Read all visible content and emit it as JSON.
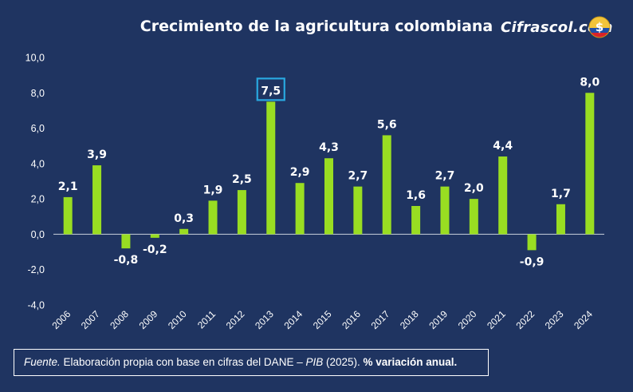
{
  "header": {
    "brand": "Cifrascol.com",
    "brand_logo_icon": "dollar-coin-colombia-flag-icon"
  },
  "source_note": {
    "prefix": "Fuente.",
    "text1": " Elaboración propia con base en cifras del DANE – ",
    "italic": "PIB",
    "text2": " (2025). ",
    "bold": "% variación anual."
  },
  "chart_data": {
    "type": "bar",
    "title": "Crecimiento de la agricultura colombiana",
    "categories": [
      "2006",
      "2007",
      "2008",
      "2009",
      "2010",
      "2011",
      "2012",
      "2013",
      "2014",
      "2015",
      "2016",
      "2017",
      "2018",
      "2019",
      "2020",
      "2021",
      "2022",
      "2023",
      "2024"
    ],
    "values": [
      2.1,
      3.9,
      -0.8,
      -0.2,
      0.3,
      1.9,
      2.5,
      7.5,
      2.9,
      4.3,
      2.7,
      5.6,
      1.6,
      2.7,
      2.0,
      4.4,
      -0.9,
      1.7,
      8.0
    ],
    "value_labels": [
      "2,1",
      "3,9",
      "-0,8",
      "-0,2",
      "0,3",
      "1,9",
      "2,5",
      "7,5",
      "2,9",
      "4,3",
      "2,7",
      "5,6",
      "1,6",
      "2,7",
      "2,0",
      "4,4",
      "-0,9",
      "1,7",
      "8,0"
    ],
    "yticks": [
      "10,0",
      "8,0",
      "6,0",
      "4,0",
      "2,0",
      "0,0",
      "-2,0",
      "-4,0"
    ],
    "ytick_values": [
      10,
      8,
      6,
      4,
      2,
      0,
      -2,
      -4
    ],
    "ylim": [
      -4,
      10
    ],
    "highlighted": "2013",
    "grid": false,
    "colors": {
      "bar": "#99dd22",
      "background": "#1f3461",
      "highlight_box": "#29a8e0",
      "text": "#ffffff"
    }
  }
}
